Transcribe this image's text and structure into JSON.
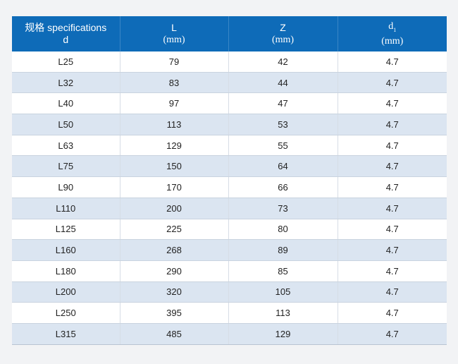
{
  "table": {
    "headers": [
      {
        "line1": "规格 specifications",
        "line2": "d"
      },
      {
        "line1": "L",
        "line2": "(mm)"
      },
      {
        "line1": "Z",
        "line2": "(mm)"
      },
      {
        "line1": "d",
        "sub": "1",
        "line2": "(mm)"
      }
    ],
    "rows": [
      [
        "L25",
        "79",
        "42",
        "4.7"
      ],
      [
        "L32",
        "83",
        "44",
        "4.7"
      ],
      [
        "L40",
        "97",
        "47",
        "4.7"
      ],
      [
        "L50",
        "113",
        "53",
        "4.7"
      ],
      [
        "L63",
        "129",
        "55",
        "4.7"
      ],
      [
        "L75",
        "150",
        "64",
        "4.7"
      ],
      [
        "L90",
        "170",
        "66",
        "4.7"
      ],
      [
        "L110",
        "200",
        "73",
        "4.7"
      ],
      [
        "L125",
        "225",
        "80",
        "4.7"
      ],
      [
        "L160",
        "268",
        "89",
        "4.7"
      ],
      [
        "L180",
        "290",
        "85",
        "4.7"
      ],
      [
        "L200",
        "320",
        "105",
        "4.7"
      ],
      [
        "L250",
        "395",
        "113",
        "4.7"
      ],
      [
        "L315",
        "485",
        "129",
        "4.7"
      ]
    ]
  },
  "colors": {
    "header_bg": "#0e6bb8",
    "row_alt": "#dbe5f1",
    "page_bg": "#f2f3f5"
  }
}
